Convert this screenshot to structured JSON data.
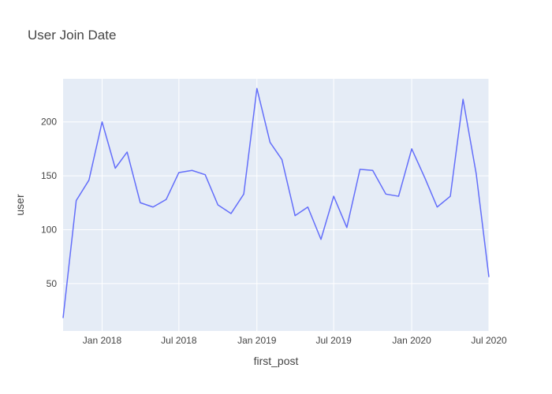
{
  "chart_data": {
    "type": "line",
    "title": "User Join Date",
    "xlabel": "first_post",
    "ylabel": "user",
    "xlim": [
      "2017-10-01",
      "2020-07-01"
    ],
    "ylim": [
      6,
      240
    ],
    "grid": true,
    "x_ticks": [
      "2018-01-01",
      "2018-07-01",
      "2019-01-01",
      "2019-07-01",
      "2020-01-01",
      "2020-07-01"
    ],
    "x_tick_labels": [
      "Jan 2018",
      "Jul 2018",
      "Jan 2019",
      "Jul 2019",
      "Jan 2020",
      "Jul 2020"
    ],
    "y_ticks": [
      50,
      100,
      150,
      200
    ],
    "y_tick_labels": [
      "50",
      "100",
      "150",
      "200"
    ],
    "series": [
      {
        "color": "#636efa",
        "x": [
          "2017-10-01",
          "2017-11-01",
          "2017-12-01",
          "2018-01-01",
          "2018-02-01",
          "2018-03-01",
          "2018-04-01",
          "2018-05-01",
          "2018-06-01",
          "2018-07-01",
          "2018-08-01",
          "2018-09-01",
          "2018-10-01",
          "2018-11-01",
          "2018-12-01",
          "2019-01-01",
          "2019-02-01",
          "2019-03-01",
          "2019-04-01",
          "2019-05-01",
          "2019-06-01",
          "2019-07-01",
          "2019-08-01",
          "2019-09-01",
          "2019-10-01",
          "2019-11-01",
          "2019-12-01",
          "2020-01-01",
          "2020-02-01",
          "2020-03-01",
          "2020-04-01",
          "2020-05-01",
          "2020-06-01",
          "2020-07-01"
        ],
        "values": [
          18,
          127,
          146,
          200,
          157,
          172,
          125,
          121,
          128,
          153,
          155,
          151,
          123,
          115,
          133,
          231,
          181,
          165,
          113,
          121,
          91,
          131,
          102,
          156,
          155,
          133,
          131,
          175,
          148,
          121,
          131,
          221,
          152,
          56
        ]
      }
    ]
  }
}
